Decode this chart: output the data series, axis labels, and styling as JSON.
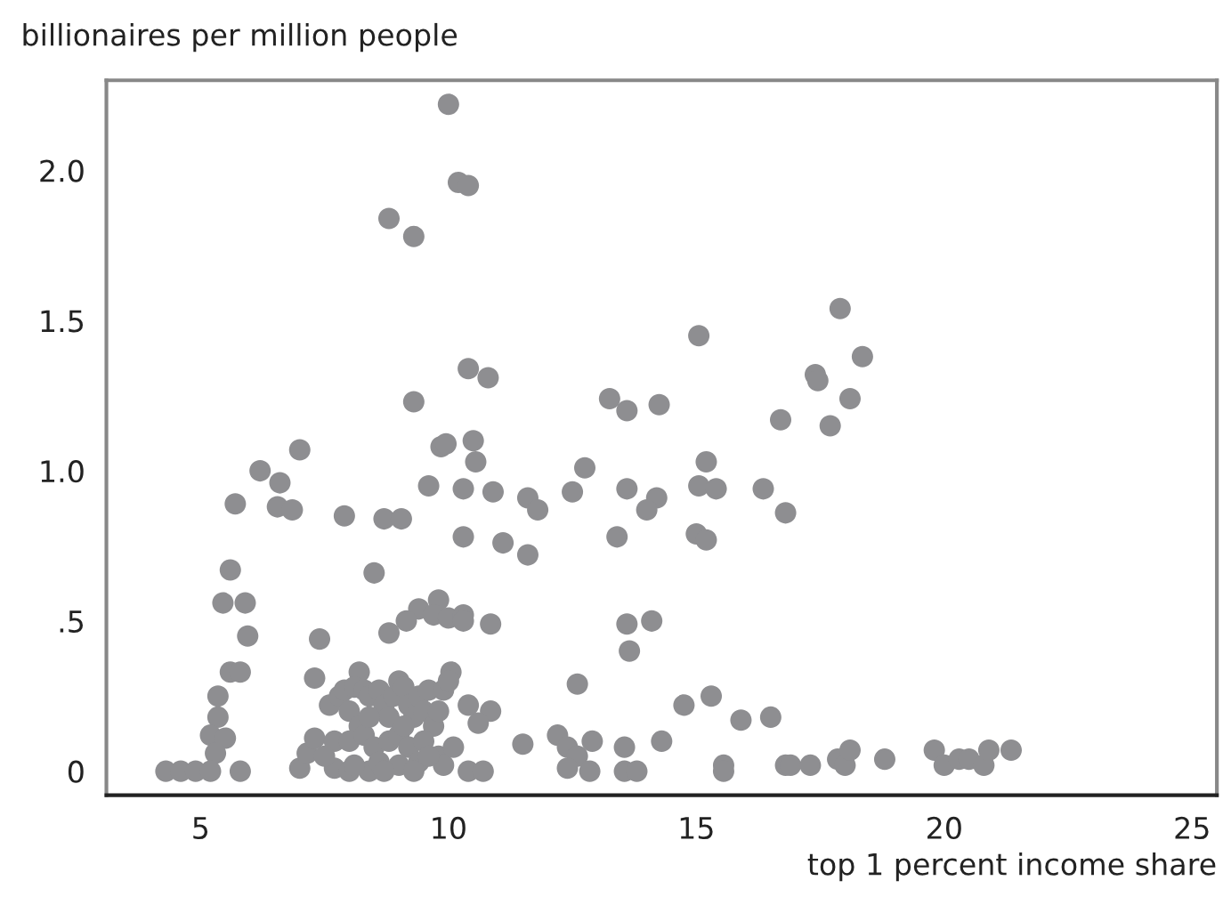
{
  "chart_data": {
    "type": "scatter",
    "xlabel": "top 1 percent income share",
    "ylabel": "billionaires per million people",
    "xlim": [
      3.1,
      25.5
    ],
    "xticks": [
      5,
      10,
      15,
      20,
      25
    ],
    "ylim": [
      -0.08,
      2.3
    ],
    "yticks": [
      {
        "value": 0,
        "label": "0"
      },
      {
        "value": 0.5,
        "label": ".5"
      },
      {
        "value": 1.0,
        "label": "1.0"
      },
      {
        "value": 1.5,
        "label": "1.5"
      },
      {
        "value": 2.0,
        "label": "2.0"
      }
    ],
    "grid": false,
    "marker": "circle",
    "series": [
      {
        "color": "#8e8e91",
        "x": [
          10.0,
          10.2,
          10.4,
          8.8,
          9.3,
          9.3,
          10.4,
          10.8,
          7.0,
          6.2,
          6.6,
          5.7,
          6.55,
          6.85,
          7.9,
          8.7,
          5.6,
          5.45,
          5.9,
          8.5,
          5.95,
          7.4,
          8.8,
          5.6,
          5.8,
          7.3,
          8.2,
          5.35,
          5.35,
          5.2,
          5.5,
          5.3,
          4.3,
          4.6,
          4.9,
          5.2,
          5.8,
          7.0,
          7.15,
          7.3,
          7.7,
          8.0,
          8.4,
          9.85,
          9.95,
          10.5,
          10.55,
          9.6,
          10.3,
          10.9,
          11.6,
          11.8,
          12.5,
          12.75,
          13.6,
          14.2,
          14.0,
          9.05,
          10.3,
          11.1,
          11.6,
          13.4,
          9.8,
          9.4,
          9.15,
          9.7,
          10.0,
          10.3,
          10.3,
          10.85,
          13.6,
          14.1,
          13.65,
          10.05,
          10.4,
          10.85,
          10.6,
          12.6,
          11.5,
          12.2,
          12.4,
          12.6,
          12.9,
          13.55,
          14.3,
          12.4,
          12.85,
          13.55,
          13.8,
          10.4,
          10.7,
          17.9,
          15.05,
          18.35,
          17.4,
          17.45,
          18.1,
          16.7,
          17.7,
          13.25,
          13.6,
          14.25,
          15.2,
          15.05,
          15.4,
          16.35,
          16.8,
          15.0,
          15.2,
          15.3,
          14.75,
          15.9,
          16.5,
          15.55,
          15.55,
          16.8,
          16.9,
          17.3,
          17.85,
          18.0,
          18.1,
          18.8,
          19.8,
          20.0,
          20.3,
          20.5,
          20.8,
          20.9,
          21.35,
          7.6,
          7.8,
          7.9,
          8.0,
          8.1,
          8.2,
          8.3,
          8.4,
          8.6,
          8.7,
          8.8,
          8.9,
          9.0,
          9.1,
          9.2,
          9.3,
          9.4,
          9.5,
          9.6,
          9.7,
          9.8,
          9.9,
          10.0,
          7.7,
          8.0,
          8.3,
          8.5,
          8.8,
          9.0,
          9.2,
          9.5,
          9.8,
          8.1,
          8.6,
          9.0,
          9.4,
          9.9,
          10.1,
          8.4,
          9.1,
          9.6,
          7.5,
          8.7,
          9.3
        ],
        "values": [
          2.22,
          1.96,
          1.95,
          1.84,
          1.78,
          1.23,
          1.34,
          1.31,
          1.07,
          1.0,
          0.96,
          0.89,
          0.88,
          0.87,
          0.85,
          0.84,
          0.67,
          0.56,
          0.56,
          0.66,
          0.45,
          0.44,
          0.46,
          0.33,
          0.33,
          0.31,
          0.33,
          0.25,
          0.18,
          0.12,
          0.11,
          0.06,
          0.0,
          0.0,
          0.0,
          0.0,
          0.0,
          0.01,
          0.06,
          0.11,
          0.01,
          0.0,
          0.0,
          1.08,
          1.09,
          1.1,
          1.03,
          0.95,
          0.94,
          0.93,
          0.91,
          0.87,
          0.93,
          1.01,
          0.94,
          0.91,
          0.87,
          0.84,
          0.78,
          0.76,
          0.72,
          0.78,
          0.57,
          0.54,
          0.5,
          0.52,
          0.51,
          0.52,
          0.5,
          0.49,
          0.49,
          0.5,
          0.4,
          0.33,
          0.22,
          0.2,
          0.16,
          0.29,
          0.09,
          0.12,
          0.08,
          0.05,
          0.1,
          0.08,
          0.1,
          0.01,
          0.0,
          0.0,
          0.0,
          0.0,
          0.0,
          1.54,
          1.45,
          1.38,
          1.32,
          1.3,
          1.24,
          1.17,
          1.15,
          1.24,
          1.2,
          1.22,
          1.03,
          0.95,
          0.94,
          0.94,
          0.86,
          0.79,
          0.77,
          0.25,
          0.22,
          0.17,
          0.18,
          0.02,
          0.0,
          0.02,
          0.02,
          0.02,
          0.04,
          0.02,
          0.07,
          0.04,
          0.07,
          0.02,
          0.04,
          0.04,
          0.02,
          0.07,
          0.07,
          0.22,
          0.25,
          0.27,
          0.2,
          0.28,
          0.15,
          0.27,
          0.25,
          0.27,
          0.22,
          0.18,
          0.25,
          0.3,
          0.28,
          0.22,
          0.18,
          0.25,
          0.2,
          0.27,
          0.15,
          0.2,
          0.27,
          0.3,
          0.1,
          0.1,
          0.12,
          0.08,
          0.1,
          0.12,
          0.08,
          0.1,
          0.05,
          0.02,
          0.03,
          0.02,
          0.03,
          0.02,
          0.08,
          0.18,
          0.15,
          0.05,
          0.05,
          0.0,
          0.0
        ]
      }
    ]
  }
}
